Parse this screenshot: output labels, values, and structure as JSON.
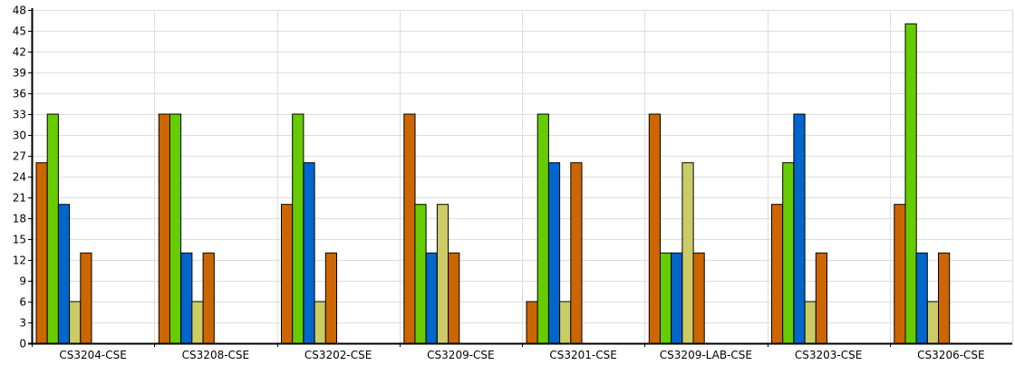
{
  "chart_data": {
    "type": "bar",
    "title": "",
    "xlabel": "",
    "ylabel": "",
    "ylim": [
      0,
      48
    ],
    "yticks": [
      0,
      3,
      6,
      9,
      12,
      15,
      18,
      21,
      24,
      27,
      30,
      33,
      36,
      39,
      42,
      45,
      48
    ],
    "grid": true,
    "legend": "none",
    "categories": [
      "CS3204-CSE",
      "CS3208-CSE",
      "CS3202-CSE",
      "CS3209-CSE",
      "CS3201-CSE",
      "CS3209-LAB-CSE",
      "CS3203-CSE",
      "CS3206-CSE"
    ],
    "series": [
      {
        "color": "#cc6600",
        "values": [
          26,
          33,
          20,
          33,
          6,
          33,
          20,
          20
        ]
      },
      {
        "color": "#66cc00",
        "values": [
          33,
          33,
          33,
          20,
          33,
          13,
          26,
          46
        ]
      },
      {
        "color": "#0066cc",
        "values": [
          20,
          13,
          26,
          13,
          26,
          13,
          33,
          13
        ]
      },
      {
        "color": "#cccc66",
        "values": [
          6,
          6,
          6,
          20,
          6,
          26,
          6,
          6
        ]
      },
      {
        "color": "#cc6600",
        "values": [
          13,
          13,
          13,
          13,
          26,
          13,
          13,
          13
        ]
      }
    ]
  }
}
